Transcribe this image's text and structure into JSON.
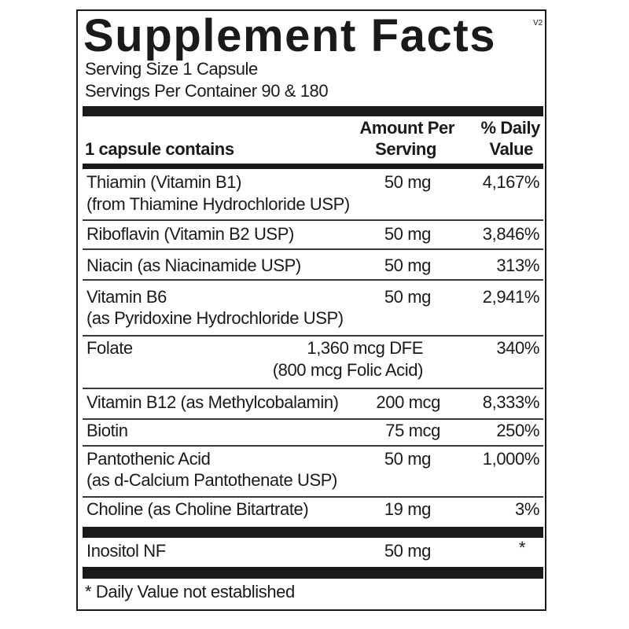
{
  "title": "Supplement Facts",
  "version_mark": "V2",
  "serving_size": "Serving Size 1 Capsule",
  "servings_per_container": "Servings Per Container 90 & 180",
  "header": {
    "contains": "1 capsule contains",
    "amount_line1": "Amount Per",
    "amount_line2": "Serving",
    "dv_line1": "% Daily",
    "dv_line2": "Value"
  },
  "rows": [
    {
      "name": "Thiamin (Vitamin B1)",
      "source": "(from Thiamine Hydrochloride USP)",
      "amount": "50 mg",
      "dv": "4,167%"
    },
    {
      "name": "Riboflavin (Vitamin B2 USP)",
      "amount": "50 mg",
      "dv": "3,846%"
    },
    {
      "name": "Niacin (as Niacinamide USP)",
      "amount": "50 mg",
      "dv": "313%"
    },
    {
      "name": "Vitamin B6",
      "source": "(as Pyridoxine Hydrochloride USP)",
      "amount": "50 mg",
      "dv": "2,941%"
    },
    {
      "name": "Folate",
      "amount": "1,360 mcg DFE",
      "amount_note": "(800 mcg Folic Acid)",
      "dv": "340%"
    },
    {
      "name": "Vitamin B12 (as Methylcobalamin)",
      "amount": "200 mcg",
      "dv": "8,333%"
    },
    {
      "name": "Biotin",
      "amount": "75 mcg",
      "dv": "250%"
    },
    {
      "name": "Pantothenic Acid",
      "source": "(as d-Calcium Pantothenate USP)",
      "amount": "50 mg",
      "dv": "1,000%"
    },
    {
      "name": "Choline (as Choline Bitartrate)",
      "amount": "19 mg",
      "dv": "3%"
    },
    {
      "name": "Inositol NF",
      "amount": "50 mg",
      "dv": "*"
    }
  ],
  "footnote": "* Daily Value not established"
}
